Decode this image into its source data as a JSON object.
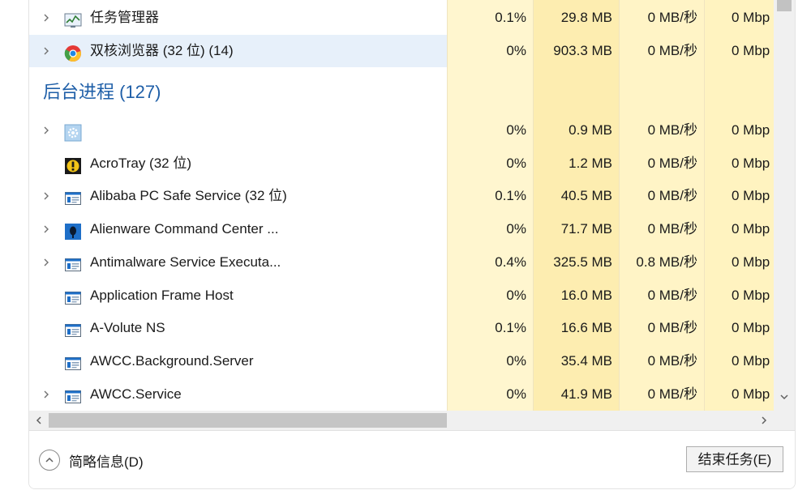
{
  "colors": {
    "cpu_light": "#fff8d6",
    "cpu_med": "#fff0b5",
    "mem_med": "#fde9a4",
    "disk_light": "#fff6cc",
    "net_light": "#fff4c2",
    "selected_row": "#e7f0fa",
    "section_title": "#1f5fa8",
    "scrollbar_track": "#f0f0f0",
    "scrollbar_thumb": "#c2c2c2"
  },
  "processes_top": [
    {
      "name": "任务管理器",
      "icon": "task-manager-icon",
      "expandable": true,
      "cpu": "0.1%",
      "mem": "29.8 MB",
      "disk": "0 MB/秒",
      "net": "0 Mbp"
    },
    {
      "name": "双核浏览器 (32 位) (14)",
      "icon": "browser-icon",
      "expandable": true,
      "selected": true,
      "cpu": "0%",
      "mem": "903.3 MB",
      "disk": "0 MB/秒",
      "net": "0 Mbp"
    }
  ],
  "section": {
    "title": "后台进程 (127)"
  },
  "processes_bg": [
    {
      "name": "",
      "icon": "gear-icon",
      "expandable": true,
      "cpu": "0%",
      "mem": "0.9 MB",
      "disk": "0 MB/秒",
      "net": "0 Mbp"
    },
    {
      "name": "AcroTray (32 位)",
      "icon": "acrotray-icon",
      "expandable": false,
      "cpu": "0%",
      "mem": "1.2 MB",
      "disk": "0 MB/秒",
      "net": "0 Mbp"
    },
    {
      "name": "Alibaba PC Safe Service (32 位)",
      "icon": "service-window-icon",
      "expandable": true,
      "cpu": "0.1%",
      "mem": "40.5 MB",
      "disk": "0 MB/秒",
      "net": "0 Mbp"
    },
    {
      "name": "Alienware Command Center ...",
      "icon": "alienware-icon",
      "expandable": true,
      "cpu": "0%",
      "mem": "71.7 MB",
      "disk": "0 MB/秒",
      "net": "0 Mbp"
    },
    {
      "name": "Antimalware Service Executa...",
      "icon": "service-window-icon",
      "expandable": true,
      "cpu": "0.4%",
      "mem": "325.5 MB",
      "disk": "0.8 MB/秒",
      "net": "0 Mbp"
    },
    {
      "name": "Application Frame Host",
      "icon": "service-window-icon",
      "expandable": false,
      "cpu": "0%",
      "mem": "16.0 MB",
      "disk": "0 MB/秒",
      "net": "0 Mbp"
    },
    {
      "name": "A-Volute NS",
      "icon": "service-window-icon",
      "expandable": false,
      "cpu": "0.1%",
      "mem": "16.6 MB",
      "disk": "0 MB/秒",
      "net": "0 Mbp"
    },
    {
      "name": "AWCC.Background.Server",
      "icon": "service-window-icon",
      "expandable": false,
      "cpu": "0%",
      "mem": "35.4 MB",
      "disk": "0 MB/秒",
      "net": "0 Mbp"
    },
    {
      "name": "AWCC.Service",
      "icon": "service-window-icon",
      "expandable": true,
      "cpu": "0%",
      "mem": "41.9 MB",
      "disk": "0 MB/秒",
      "net": "0 Mbp"
    }
  ],
  "footer": {
    "fewer_details_label": "简略信息(D)",
    "end_task_label": "结束任务(E)"
  }
}
